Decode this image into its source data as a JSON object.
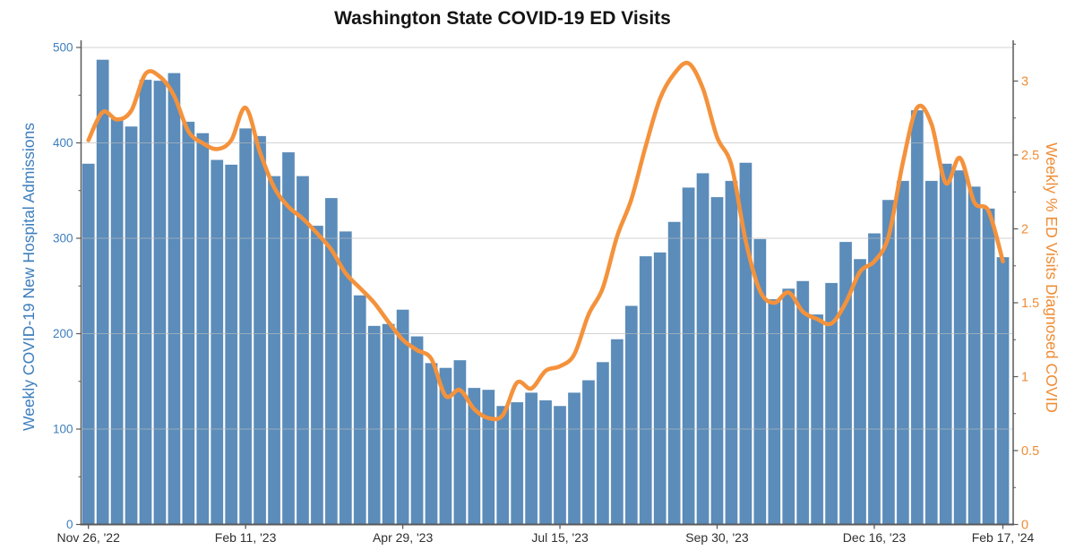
{
  "chart_data": {
    "type": "bar+line combo",
    "title": "Washington State COVID-19 ED Visits",
    "categories": [
      "Nov 26, '22",
      "Dec 3, '22",
      "Dec 10, '22",
      "Dec 17, '22",
      "Dec 24, '22",
      "Dec 31, '22",
      "Jan 7, '23",
      "Jan 14, '23",
      "Jan 21, '23",
      "Jan 28, '23",
      "Feb 4, '23",
      "Feb 11, '23",
      "Feb 18, '23",
      "Feb 25, '23",
      "Mar 4, '23",
      "Mar 11, '23",
      "Mar 18, '23",
      "Mar 25, '23",
      "Apr 1, '23",
      "Apr 8, '23",
      "Apr 15, '23",
      "Apr 22, '23",
      "Apr 29, '23",
      "May 6, '23",
      "May 13, '23",
      "May 20, '23",
      "May 27, '23",
      "Jun 3, '23",
      "Jun 10, '23",
      "Jun 17, '23",
      "Jun 24, '23",
      "Jul 1, '23",
      "Jul 8, '23",
      "Jul 15, '23",
      "Jul 22, '23",
      "Jul 29, '23",
      "Aug 5, '23",
      "Aug 12, '23",
      "Aug 19, '23",
      "Aug 26, '23",
      "Sep 2, '23",
      "Sep 9, '23",
      "Sep 16, '23",
      "Sep 23, '23",
      "Sep 30, '23",
      "Oct 7, '23",
      "Oct 14, '23",
      "Oct 21, '23",
      "Oct 28, '23",
      "Nov 4, '23",
      "Nov 11, '23",
      "Nov 18, '23",
      "Nov 25, '23",
      "Dec 2, '23",
      "Dec 9, '23",
      "Dec 16, '23",
      "Dec 23, '23",
      "Dec 30, '23",
      "Jan 6, '24",
      "Jan 13, '24",
      "Jan 20, '24",
      "Jan 27, '24",
      "Feb 3, '24",
      "Feb 10, '24",
      "Feb 17, '24"
    ],
    "series": [
      {
        "name": "Weekly COVID-19 New Hospital Admissions",
        "type": "bar",
        "axis": "left",
        "color": "#5b8cba",
        "values": [
          378,
          487,
          425,
          417,
          466,
          465,
          473,
          422,
          410,
          382,
          377,
          415,
          407,
          365,
          390,
          365,
          313,
          342,
          307,
          240,
          208,
          210,
          225,
          197,
          169,
          164,
          172,
          143,
          141,
          124,
          128,
          138,
          130,
          124,
          138,
          151,
          170,
          194,
          229,
          281,
          285,
          317,
          353,
          368,
          343,
          360,
          379,
          299,
          236,
          247,
          255,
          220,
          253,
          296,
          278,
          305,
          340,
          360,
          434,
          360,
          378,
          371,
          354,
          331,
          280
        ]
      },
      {
        "name": "Weekly % ED Visits Diagnosed COVID",
        "type": "line",
        "axis": "right",
        "color": "#f4923c",
        "values": [
          2.6,
          2.79,
          2.74,
          2.8,
          3.05,
          3.03,
          2.9,
          2.66,
          2.58,
          2.54,
          2.6,
          2.82,
          2.52,
          2.28,
          2.15,
          2.07,
          1.97,
          1.86,
          1.7,
          1.6,
          1.5,
          1.37,
          1.25,
          1.18,
          1.12,
          0.87,
          0.91,
          0.78,
          0.72,
          0.74,
          0.96,
          0.92,
          1.04,
          1.07,
          1.15,
          1.42,
          1.6,
          1.95,
          2.2,
          2.56,
          2.88,
          3.05,
          3.12,
          2.95,
          2.62,
          2.43,
          1.92,
          1.58,
          1.5,
          1.57,
          1.44,
          1.39,
          1.36,
          1.5,
          1.71,
          1.78,
          1.95,
          2.45,
          2.82,
          2.71,
          2.31,
          2.48,
          2.18,
          2.12,
          1.78
        ]
      }
    ],
    "y_left": {
      "label": "Weekly COVID-19 New Hospital Admissions",
      "min": 0,
      "max": 500,
      "tick_step": 100,
      "ticks": [
        0,
        100,
        200,
        300,
        400,
        500
      ],
      "color": "#3d7ebd"
    },
    "y_right": {
      "label": "Weekly % ED Visits Diagnosed COVID",
      "min": 0,
      "max": 3,
      "tick_step": 0.5,
      "ticks": [
        0,
        0.5,
        1,
        1.5,
        2,
        2.5,
        3
      ],
      "tick_labels": [
        "0",
        "0.5",
        "1",
        "1.5",
        "2",
        "2.5",
        "3"
      ],
      "color": "#ee8d35"
    },
    "x_axis": {
      "tick_labels": [
        "Nov 26, '22",
        "Feb 11, '23",
        "Apr 29, '23",
        "Jul 15, '23",
        "Sep 30, '23",
        "Dec 16, '23",
        "Feb 17, '24"
      ],
      "tick_indices": [
        0,
        11,
        22,
        33,
        44,
        55,
        64
      ]
    },
    "grid": "horizontal",
    "legend": "none"
  },
  "colors": {
    "background": "#ffffff",
    "bar": "#5b8cba",
    "bar_edge": "#4e80b0",
    "line": "#f4923c",
    "grid": "#bcbcbc",
    "axis": "#58595b",
    "x_tick_text": "#2f2f2f",
    "title_text": "#141414"
  }
}
